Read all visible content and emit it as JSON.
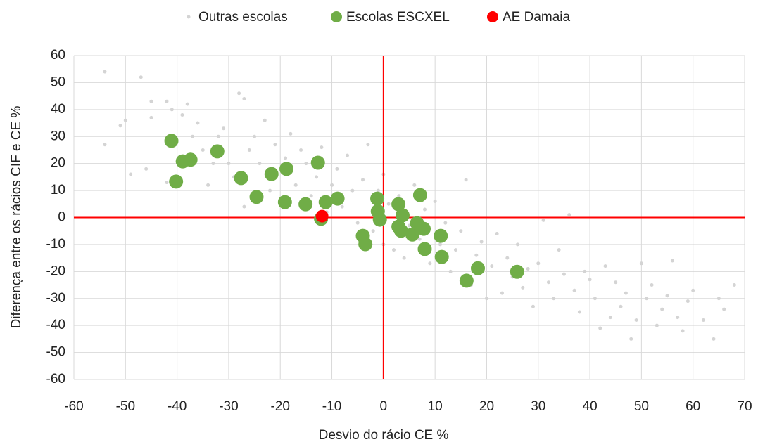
{
  "chart_data": {
    "type": "scatter",
    "x_label": "Desvio do rácio CE %",
    "y_label": "Diferença entre os rácios CIF e CE %",
    "xlim": [
      -60,
      70
    ],
    "xticks": [
      -60,
      -50,
      -40,
      -30,
      -20,
      -10,
      0,
      10,
      20,
      30,
      40,
      50,
      60,
      70
    ],
    "ylim": [
      -60,
      60
    ],
    "yticks": [
      -60,
      -50,
      -40,
      -30,
      -20,
      -10,
      0,
      10,
      20,
      30,
      40,
      50,
      60
    ],
    "grid": true,
    "grid_color": "#d9d9d9",
    "zero_line_color": "#ff0000",
    "legend": "top",
    "series": [
      {
        "name": "Outras escolas",
        "color": "#d4d4d4",
        "x": [
          -54,
          -54,
          -51,
          -50,
          -49,
          -47,
          -46,
          -45,
          -45,
          -42,
          -42,
          -41,
          -39,
          -38,
          -37,
          -36,
          -35,
          -34,
          -33,
          -32,
          -31,
          -30,
          -29,
          -28,
          -27,
          -27,
          -26,
          -25,
          -24,
          -23,
          -22,
          -21,
          -20,
          -19,
          -18,
          -17,
          -16,
          -15,
          -14,
          -13,
          -12,
          -11,
          -10,
          -9,
          -8,
          -7,
          -6,
          -5,
          -4,
          -3,
          -2,
          -1,
          0,
          0,
          1,
          2,
          3,
          4,
          5,
          6,
          7,
          8,
          9,
          10,
          11,
          12,
          13,
          14,
          15,
          16,
          17,
          18,
          19,
          20,
          21,
          22,
          23,
          24,
          25,
          26,
          27,
          28,
          29,
          30,
          31,
          32,
          33,
          34,
          35,
          36,
          37,
          38,
          39,
          40,
          41,
          42,
          43,
          44,
          45,
          46,
          47,
          48,
          49,
          50,
          51,
          52,
          53,
          54,
          55,
          56,
          57,
          58,
          59,
          60,
          62,
          64,
          65,
          66,
          68
        ],
        "values": [
          54,
          27,
          34,
          36,
          16,
          52,
          18,
          43,
          37,
          43,
          13,
          40,
          38,
          42,
          30,
          35,
          25,
          12,
          20,
          30,
          33,
          20,
          15,
          46,
          44,
          4,
          25,
          30,
          20,
          36,
          10,
          27,
          5,
          22,
          31,
          12,
          25,
          20,
          8,
          15,
          26,
          2,
          12,
          18,
          4,
          23,
          10,
          -2,
          14,
          27,
          -5,
          10,
          16,
          -10,
          5,
          -12,
          8,
          -15,
          -3,
          12,
          -8,
          3,
          -17,
          6,
          -10,
          -2,
          -20,
          -12,
          -5,
          14,
          -25,
          -14,
          -9,
          -30,
          -18,
          -6,
          -28,
          -15,
          -22,
          -10,
          -26,
          -19,
          -33,
          -17,
          -1,
          -24,
          -30,
          -12,
          -21,
          1,
          -27,
          -35,
          -20,
          -23,
          -30,
          -41,
          -18,
          -37,
          -24,
          -33,
          -28,
          -45,
          -38,
          -17,
          -30,
          -25,
          -40,
          -34,
          -29,
          -16,
          -37,
          -42,
          -31,
          -27,
          -38,
          -45,
          -30,
          -34,
          -25
        ]
      },
      {
        "name": "Escolas ESCXEL",
        "color": "#70ad47",
        "x": [
          -41.1,
          -38.9,
          -37.4,
          -40.2,
          -32.2,
          -27.6,
          -24.6,
          -21.7,
          -18.8,
          -19.1,
          -15.1,
          -12.7,
          -11.2,
          -8.9,
          -12.1,
          -4,
          -3.5,
          -1.2,
          -1.1,
          -0.7,
          2.9,
          3.7,
          2.9,
          3.4,
          5.6,
          7.1,
          6.5,
          7.8,
          8,
          11.1,
          11.3,
          18.3,
          16.1,
          25.9
        ],
        "values": [
          28.4,
          20.8,
          21.4,
          13.3,
          24.5,
          14.6,
          7.6,
          16.1,
          18,
          5.7,
          4.9,
          20.3,
          5.7,
          7,
          -0.5,
          -6.8,
          -9.9,
          7,
          2.3,
          -0.8,
          4.9,
          0.8,
          -3.4,
          -4.9,
          -6.3,
          8.3,
          -2.1,
          -4.2,
          -11.7,
          -6.8,
          -14.6,
          -18.8,
          -23.4,
          -20.1
        ]
      },
      {
        "name": "AE Damaia",
        "color": "#ff0000",
        "x": [
          -11.9
        ],
        "values": [
          0.5
        ]
      }
    ]
  }
}
